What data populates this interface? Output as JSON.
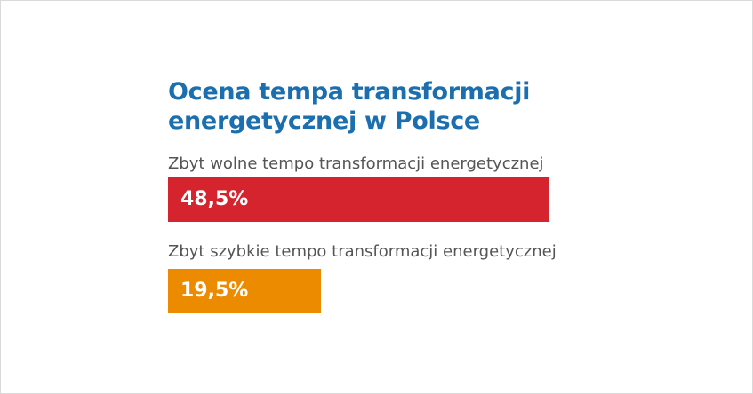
{
  "chart_data": {
    "type": "bar",
    "orientation": "horizontal",
    "title": "Ocena tempa transformacji energetycznej w Polsce",
    "categories": [
      "Zbyt wolne tempo transformacji energetycznej",
      "Zbyt szybkie tempo transformacji energetycznej"
    ],
    "values": [
      48.5,
      19.5
    ],
    "value_labels": [
      "48,5%",
      "19,5%"
    ],
    "colors": [
      "#d6242f",
      "#ec8b00"
    ],
    "xlim": [
      0,
      100
    ],
    "unit": "%",
    "grid": false
  }
}
